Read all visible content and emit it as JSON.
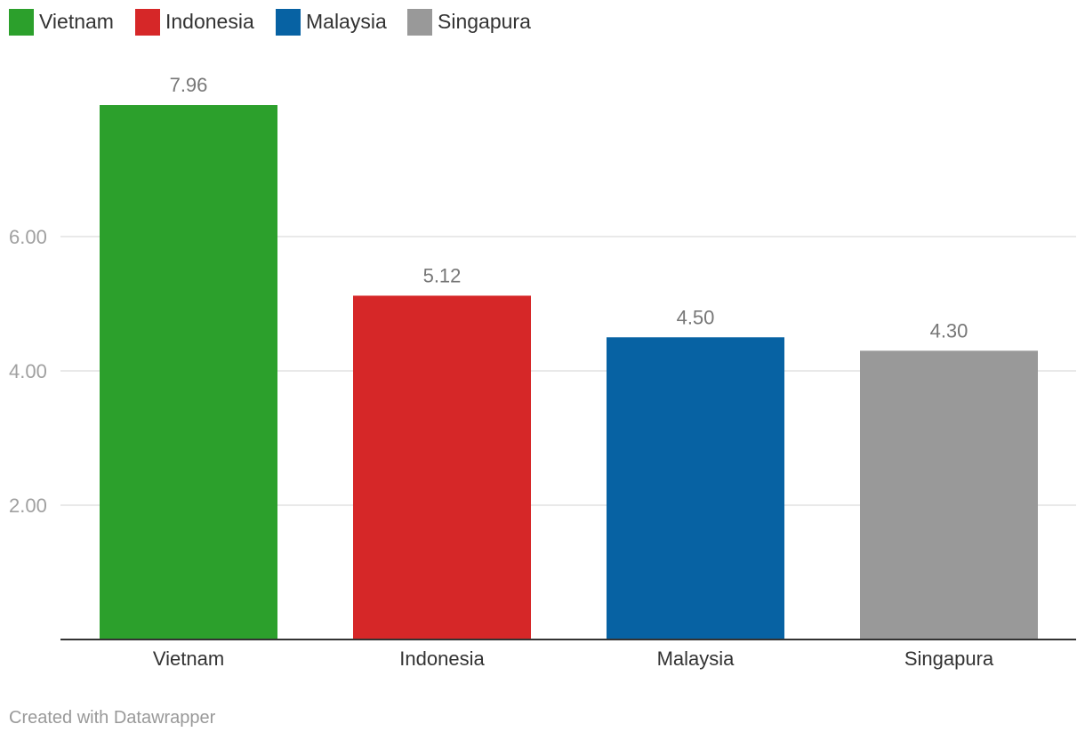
{
  "chart_data": {
    "type": "bar",
    "title": "",
    "xlabel": "",
    "ylabel": "",
    "categories": [
      "Vietnam",
      "Indonesia",
      "Malaysia",
      "Singapura"
    ],
    "values": [
      7.96,
      5.12,
      4.5,
      4.3
    ],
    "value_labels": [
      "7.96",
      "5.12",
      "4.50",
      "4.30"
    ],
    "colors": [
      "#2ca02c",
      "#d62728",
      "#0762a3",
      "#999999"
    ],
    "legend": {
      "placement": "top-left",
      "entries": [
        {
          "label": "Vietnam",
          "color": "#2ca02c"
        },
        {
          "label": "Indonesia",
          "color": "#d62728"
        },
        {
          "label": "Malaysia",
          "color": "#0762a3"
        },
        {
          "label": "Singapura",
          "color": "#999999"
        }
      ]
    },
    "yticks": [
      2,
      4,
      6
    ],
    "ytick_labels": [
      "2.00",
      "4.00",
      "6.00"
    ],
    "ylim": [
      0,
      8.9
    ],
    "grid": true
  },
  "footer": {
    "credit": "Created with Datawrapper"
  }
}
